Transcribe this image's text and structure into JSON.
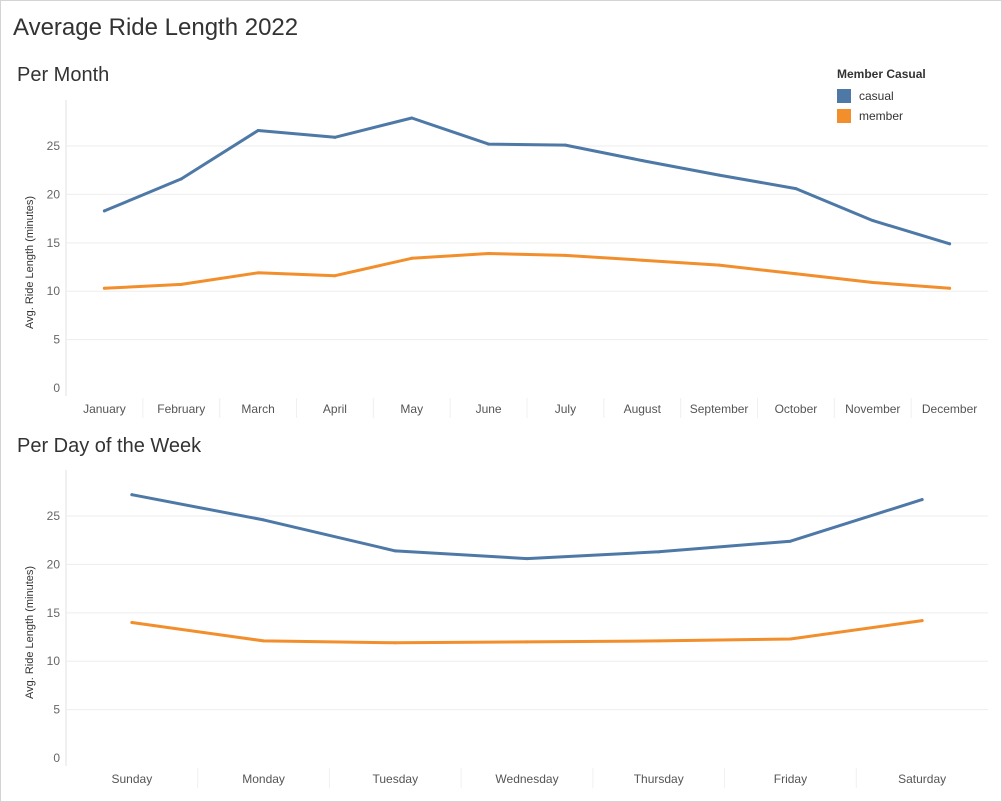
{
  "title": "Average Ride Length 2022",
  "legend": {
    "title": "Member Casual",
    "items": [
      {
        "label": "casual",
        "color": "#4e79a7"
      },
      {
        "label": "member",
        "color": "#f28e2b"
      }
    ]
  },
  "chart_data": [
    {
      "type": "line",
      "title": "Per Month",
      "ylabel": "Avg. Ride Length (minutes)",
      "categories": [
        "January",
        "February",
        "March",
        "April",
        "May",
        "June",
        "July",
        "August",
        "September",
        "October",
        "November",
        "December"
      ],
      "ylim": [
        0,
        28
      ],
      "yticks": [
        0,
        5,
        10,
        15,
        20,
        25
      ],
      "series": [
        {
          "name": "casual",
          "color": "#4e79a7",
          "values": [
            18.3,
            21.6,
            26.6,
            25.9,
            27.9,
            25.2,
            25.1,
            23.5,
            22.0,
            20.6,
            17.3,
            14.9
          ]
        },
        {
          "name": "member",
          "color": "#f28e2b",
          "values": [
            10.3,
            10.7,
            11.9,
            11.6,
            13.4,
            13.9,
            13.7,
            13.2,
            12.7,
            11.8,
            10.9,
            10.3
          ]
        }
      ]
    },
    {
      "type": "line",
      "title": "Per Day of the Week",
      "ylabel": "Avg. Ride Length (minutes)",
      "categories": [
        "Sunday",
        "Monday",
        "Tuesday",
        "Wednesday",
        "Thursday",
        "Friday",
        "Saturday"
      ],
      "ylim": [
        0,
        28
      ],
      "yticks": [
        0,
        5,
        10,
        15,
        20,
        25
      ],
      "series": [
        {
          "name": "casual",
          "color": "#4e79a7",
          "values": [
            27.2,
            24.6,
            21.4,
            20.6,
            21.3,
            22.4,
            26.7
          ]
        },
        {
          "name": "member",
          "color": "#f28e2b",
          "values": [
            14.0,
            12.1,
            11.9,
            12.0,
            12.1,
            12.3,
            14.2
          ]
        }
      ]
    }
  ]
}
